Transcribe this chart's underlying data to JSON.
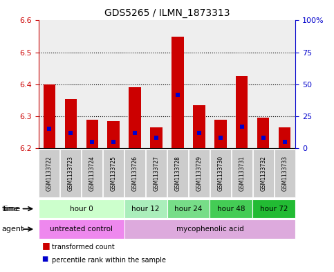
{
  "title": "GDS5265 / ILMN_1873313",
  "samples": [
    "GSM1133722",
    "GSM1133723",
    "GSM1133724",
    "GSM1133725",
    "GSM1133726",
    "GSM1133727",
    "GSM1133728",
    "GSM1133729",
    "GSM1133730",
    "GSM1133731",
    "GSM1133732",
    "GSM1133733"
  ],
  "transformed_count": [
    6.4,
    6.355,
    6.29,
    6.285,
    6.39,
    6.265,
    6.55,
    6.335,
    6.29,
    6.425,
    6.295,
    6.265
  ],
  "percentile_rank": [
    15,
    12,
    5,
    5,
    12,
    8,
    42,
    12,
    8,
    17,
    8,
    5
  ],
  "ylim": [
    6.2,
    6.6
  ],
  "yticks_left": [
    6.2,
    6.3,
    6.4,
    6.5,
    6.6
  ],
  "yticks_right_vals": [
    0,
    25,
    50,
    75,
    100
  ],
  "bar_color": "#cc0000",
  "percentile_color": "#0000cc",
  "bar_bottom": 6.2,
  "time_groups": [
    {
      "label": "hour 0",
      "start": 0,
      "end": 4,
      "color": "#ccffcc"
    },
    {
      "label": "hour 12",
      "start": 4,
      "end": 6,
      "color": "#aaeebb"
    },
    {
      "label": "hour 24",
      "start": 6,
      "end": 8,
      "color": "#77dd88"
    },
    {
      "label": "hour 48",
      "start": 8,
      "end": 10,
      "color": "#44cc55"
    },
    {
      "label": "hour 72",
      "start": 10,
      "end": 12,
      "color": "#22bb33"
    }
  ],
  "agent_groups": [
    {
      "label": "untreated control",
      "start": 0,
      "end": 4,
      "color": "#ee88ee"
    },
    {
      "label": "mycophenolic acid",
      "start": 4,
      "end": 12,
      "color": "#ddaadd"
    }
  ],
  "sample_bg_color": "#cccccc",
  "bar_width": 0.55,
  "percentile_marker_size": 4,
  "right_axis_color": "#0000cc",
  "left_axis_color": "#cc0000",
  "plot_bg_color": "#eeeeee"
}
